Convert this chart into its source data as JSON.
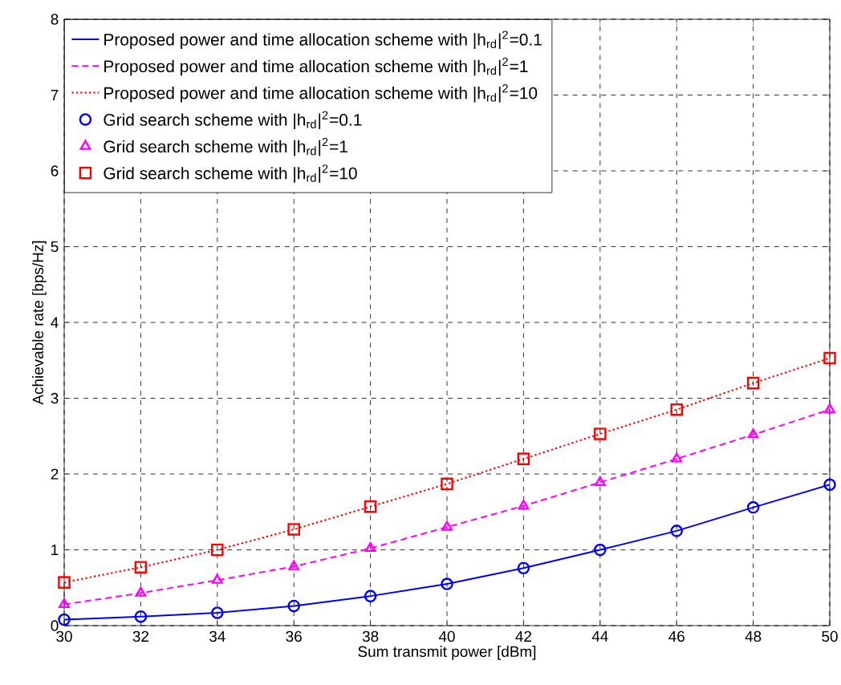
{
  "chart_data": {
    "type": "line",
    "xlabel": "Sum transmit power [dBm]",
    "ylabel": "Achievable rate [bps/Hz]",
    "x": [
      30,
      32,
      34,
      36,
      38,
      40,
      42,
      44,
      46,
      48,
      50
    ],
    "xlim": [
      30,
      50
    ],
    "ylim": [
      0,
      8
    ],
    "xticks": [
      30,
      32,
      34,
      36,
      38,
      40,
      42,
      44,
      46,
      48,
      50
    ],
    "yticks": [
      0,
      1,
      2,
      3,
      4,
      5,
      6,
      7,
      8
    ],
    "grid": true,
    "legend": "top",
    "series": [
      {
        "name": "Proposed power and time allocation scheme with |h$_{rd}$|$^{2}$=0.1",
        "line_style": "solid",
        "color": "#0000ff",
        "values": [
          0.08,
          0.12,
          0.17,
          0.26,
          0.39,
          0.55,
          0.76,
          1.0,
          1.25,
          1.56,
          1.86
        ]
      },
      {
        "name": "Proposed power and time allocation scheme with |h$_{rd}$|$^{2}$=1",
        "line_style": "dashed",
        "color": "#ff00ff",
        "values": [
          0.28,
          0.43,
          0.6,
          0.78,
          1.02,
          1.3,
          1.58,
          1.89,
          2.2,
          2.52,
          2.85
        ]
      },
      {
        "name": "Proposed power and time allocation scheme with |h$_{rd}$|$^{2}$=10",
        "line_style": "dotted",
        "color": "#ff0000",
        "values": [
          0.57,
          0.77,
          1.0,
          1.27,
          1.57,
          1.87,
          2.2,
          2.53,
          2.85,
          3.2,
          3.53
        ]
      },
      {
        "name": "Grid search scheme with |h$_{rd}$|$^{2}$=0.1",
        "type": "scatter",
        "marker": "circle",
        "color": "#0000ff",
        "values": [
          0.08,
          0.12,
          0.17,
          0.26,
          0.39,
          0.55,
          0.76,
          1.0,
          1.25,
          1.56,
          1.86
        ]
      },
      {
        "name": "Grid search scheme with |h$_{rd}$|$^{2}$=1",
        "type": "scatter",
        "marker": "triangle",
        "color": "#ff00ff",
        "values": [
          0.28,
          0.43,
          0.6,
          0.78,
          1.02,
          1.3,
          1.58,
          1.89,
          2.2,
          2.52,
          2.85
        ]
      },
      {
        "name": "Grid search scheme with |h$_{rd}$|$^{2}$=10",
        "type": "scatter",
        "marker": "square",
        "color": "#ff0000",
        "values": [
          0.57,
          0.77,
          1.0,
          1.27,
          1.57,
          1.87,
          2.2,
          2.53,
          2.85,
          3.2,
          3.53
        ]
      }
    ]
  }
}
